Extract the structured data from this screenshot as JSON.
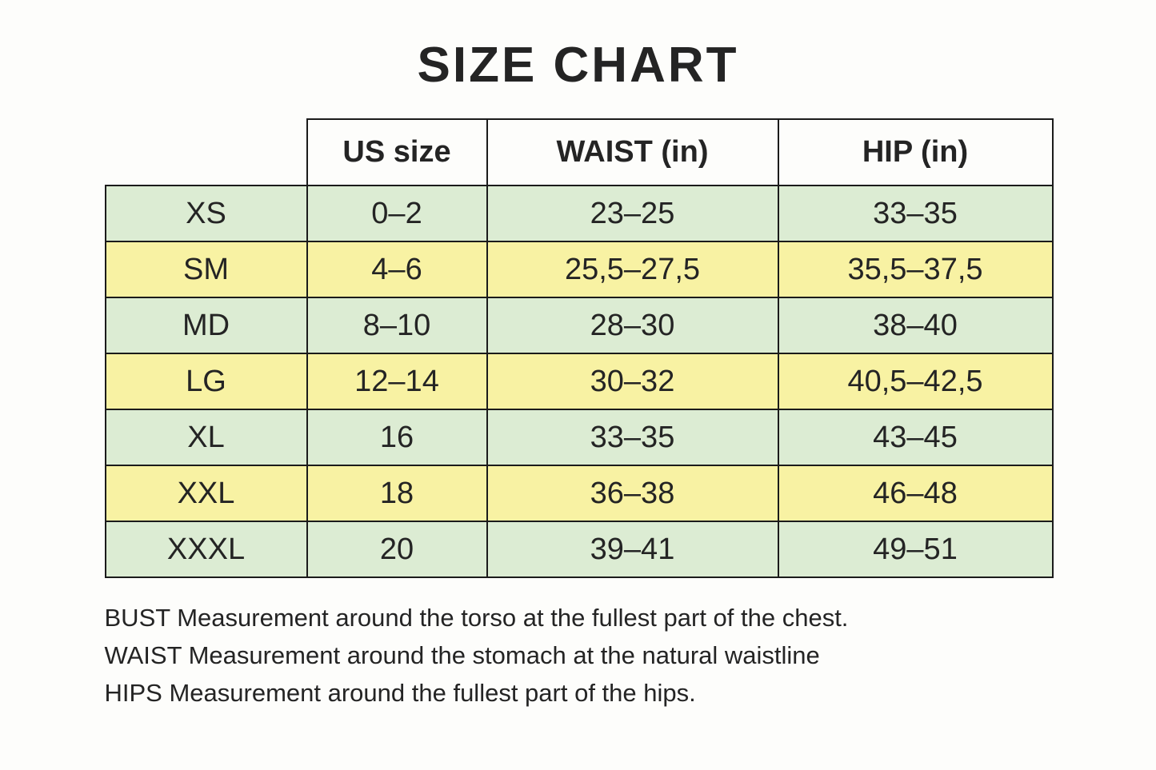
{
  "title": "SIZE CHART",
  "colors": {
    "background": "#fdfdfb",
    "text": "#242424",
    "border": "#1b1b1b",
    "row-green": "#dcecd3",
    "row-yellow": "#f8f2a3"
  },
  "table": {
    "header": {
      "us_size": "US size",
      "waist": "WAIST (in)",
      "hip": "HIP (in)"
    },
    "rows": [
      {
        "size": "XS",
        "us": "0–2",
        "waist": "23–25",
        "hip": "33–35",
        "tone": "green"
      },
      {
        "size": "SM",
        "us": "4–6",
        "waist": "25,5–27,5",
        "hip": "35,5–37,5",
        "tone": "yellow"
      },
      {
        "size": "MD",
        "us": "8–10",
        "waist": "28–30",
        "hip": "38–40",
        "tone": "green"
      },
      {
        "size": "LG",
        "us": "12–14",
        "waist": "30–32",
        "hip": "40,5–42,5",
        "tone": "yellow"
      },
      {
        "size": "XL",
        "us": "16",
        "waist": "33–35",
        "hip": "43–45",
        "tone": "green"
      },
      {
        "size": "XXL",
        "us": "18",
        "waist": "36–38",
        "hip": "46–48",
        "tone": "yellow"
      },
      {
        "size": "XXXL",
        "us": "20",
        "waist": "39–41",
        "hip": "49–51",
        "tone": "green"
      }
    ]
  },
  "notes": [
    "BUST Measurement around the torso at the fullest part of the chest.",
    "WAIST Measurement around the stomach at the natural waistline",
    "HIPS Measurement around the fullest part of the hips."
  ]
}
